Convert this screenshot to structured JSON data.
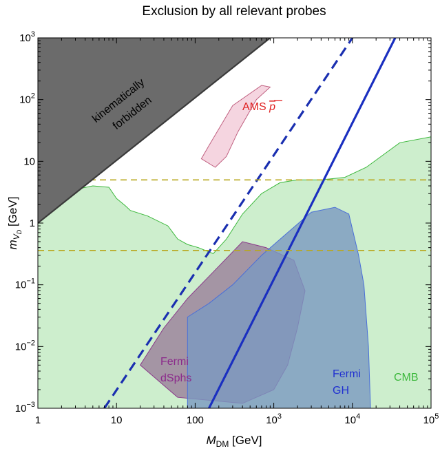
{
  "chart_data": {
    "type": "area",
    "title": "Exclusion by all relevant probes",
    "xlabel_main": "M",
    "xlabel_sub": "DM",
    "xlabel_unit": " [GeV]",
    "ylabel_main": "m",
    "ylabel_sub1": "V",
    "ylabel_sub2": "D",
    "ylabel_unit": " [GeV]",
    "xscale": "log",
    "yscale": "log",
    "xlim": [
      1,
      100000
    ],
    "ylim": [
      0.001,
      1000
    ],
    "x_ticks": [
      {
        "value": 1,
        "label": "1"
      },
      {
        "value": 10,
        "label": "10"
      },
      {
        "value": 100,
        "label": "100"
      },
      {
        "value": 1000,
        "label": "10",
        "sup": "3"
      },
      {
        "value": 10000,
        "label": "10",
        "sup": "4"
      },
      {
        "value": 100000,
        "label": "10",
        "sup": "5"
      }
    ],
    "y_ticks": [
      {
        "value": 0.001,
        "label": "10",
        "sup": "−3"
      },
      {
        "value": 0.01,
        "label": "10",
        "sup": "−2"
      },
      {
        "value": 0.1,
        "label": "10",
        "sup": "−1"
      },
      {
        "value": 1,
        "label": "1"
      },
      {
        "value": 10,
        "label": "10"
      },
      {
        "value": 100,
        "label": "10",
        "sup": "2"
      },
      {
        "value": 1000,
        "label": "10",
        "sup": "3"
      }
    ],
    "regions": [
      {
        "name": "CMB",
        "color": "#3cb83c",
        "fill": "#cdeecd",
        "boundary": [
          [
            1,
            0.001
          ],
          [
            1,
            1
          ],
          [
            2,
            2
          ],
          [
            3,
            3.5
          ],
          [
            5,
            4
          ],
          [
            8,
            3.8
          ],
          [
            10,
            2.5
          ],
          [
            13,
            1.9
          ],
          [
            15,
            1.6
          ],
          [
            25,
            1.3
          ],
          [
            45,
            0.9
          ],
          [
            60,
            0.55
          ],
          [
            80,
            0.45
          ],
          [
            110,
            0.4
          ],
          [
            170,
            0.32
          ],
          [
            250,
            0.55
          ],
          [
            400,
            1.4
          ],
          [
            700,
            3
          ],
          [
            1200,
            4.5
          ],
          [
            2000,
            5
          ],
          [
            4000,
            5
          ],
          [
            8000,
            5.5
          ],
          [
            15000,
            8
          ],
          [
            40000,
            20
          ],
          [
            100000,
            25
          ],
          [
            100000,
            0.001
          ]
        ]
      },
      {
        "name": "AMS p̄",
        "color": "#c06080",
        "fill": "#f2cbd8",
        "boundary": [
          [
            150,
            18
          ],
          [
            300,
            80
          ],
          [
            700,
            170
          ],
          [
            900,
            160
          ],
          [
            600,
            100
          ],
          [
            350,
            30
          ],
          [
            250,
            12
          ],
          [
            180,
            8
          ],
          [
            120,
            11
          ],
          [
            150,
            18
          ]
        ]
      },
      {
        "name": "Fermi dSphs",
        "color": "#8b3a8b",
        "fill": "#9a7e9a",
        "boundary": [
          [
            20,
            0.005
          ],
          [
            40,
            0.02
          ],
          [
            80,
            0.06
          ],
          [
            200,
            0.2
          ],
          [
            400,
            0.5
          ],
          [
            800,
            0.4
          ],
          [
            1800,
            0.25
          ],
          [
            2500,
            0.08
          ],
          [
            2000,
            0.02
          ],
          [
            1500,
            0.005
          ],
          [
            1000,
            0.002
          ],
          [
            400,
            0.0012
          ],
          [
            60,
            0.0015
          ],
          [
            20,
            0.005
          ]
        ]
      },
      {
        "name": "Fermi GH",
        "color": "#4a6fd8",
        "fill": "#7a98c0",
        "boundary": [
          [
            80,
            0.001
          ],
          [
            80,
            0.03
          ],
          [
            150,
            0.05
          ],
          [
            300,
            0.1
          ],
          [
            700,
            0.3
          ],
          [
            1500,
            0.7
          ],
          [
            3000,
            1.5
          ],
          [
            6000,
            1.8
          ],
          [
            9000,
            1.4
          ],
          [
            12000,
            0.3
          ],
          [
            14000,
            0.1
          ],
          [
            16000,
            0.01
          ],
          [
            17000,
            0.001
          ]
        ]
      }
    ],
    "kinematic_boundary": {
      "label": "kinematically",
      "label2": "forbidden",
      "relation": "m_VD = 2 M_DM"
    },
    "lines": [
      {
        "name": "dashed-blue",
        "style": "dashed",
        "color": "#1a2fb0",
        "x": [
          7,
          10000
        ],
        "y": [
          0.001,
          1000
        ]
      },
      {
        "name": "solid-blue",
        "style": "solid",
        "color": "#1a2fc0",
        "x": [
          150,
          35000
        ],
        "y": [
          0.001,
          1000
        ]
      },
      {
        "name": "olive-dashed-upper",
        "style": "dashed",
        "color": "#b8a820",
        "y_const": 5
      },
      {
        "name": "olive-dashed-lower",
        "style": "dashed",
        "color": "#b8a820",
        "y_const": 0.36
      }
    ],
    "labels": [
      {
        "text": "AMS ",
        "text2": "p",
        "color": "#e02020"
      },
      {
        "text": "Fermi",
        "text2": "dSphs",
        "color": "#8b2a8b"
      },
      {
        "text": "Fermi",
        "text2": "GH",
        "color": "#2030d0"
      },
      {
        "text": "CMB",
        "color": "#3cb83c"
      }
    ],
    "grid": false
  }
}
